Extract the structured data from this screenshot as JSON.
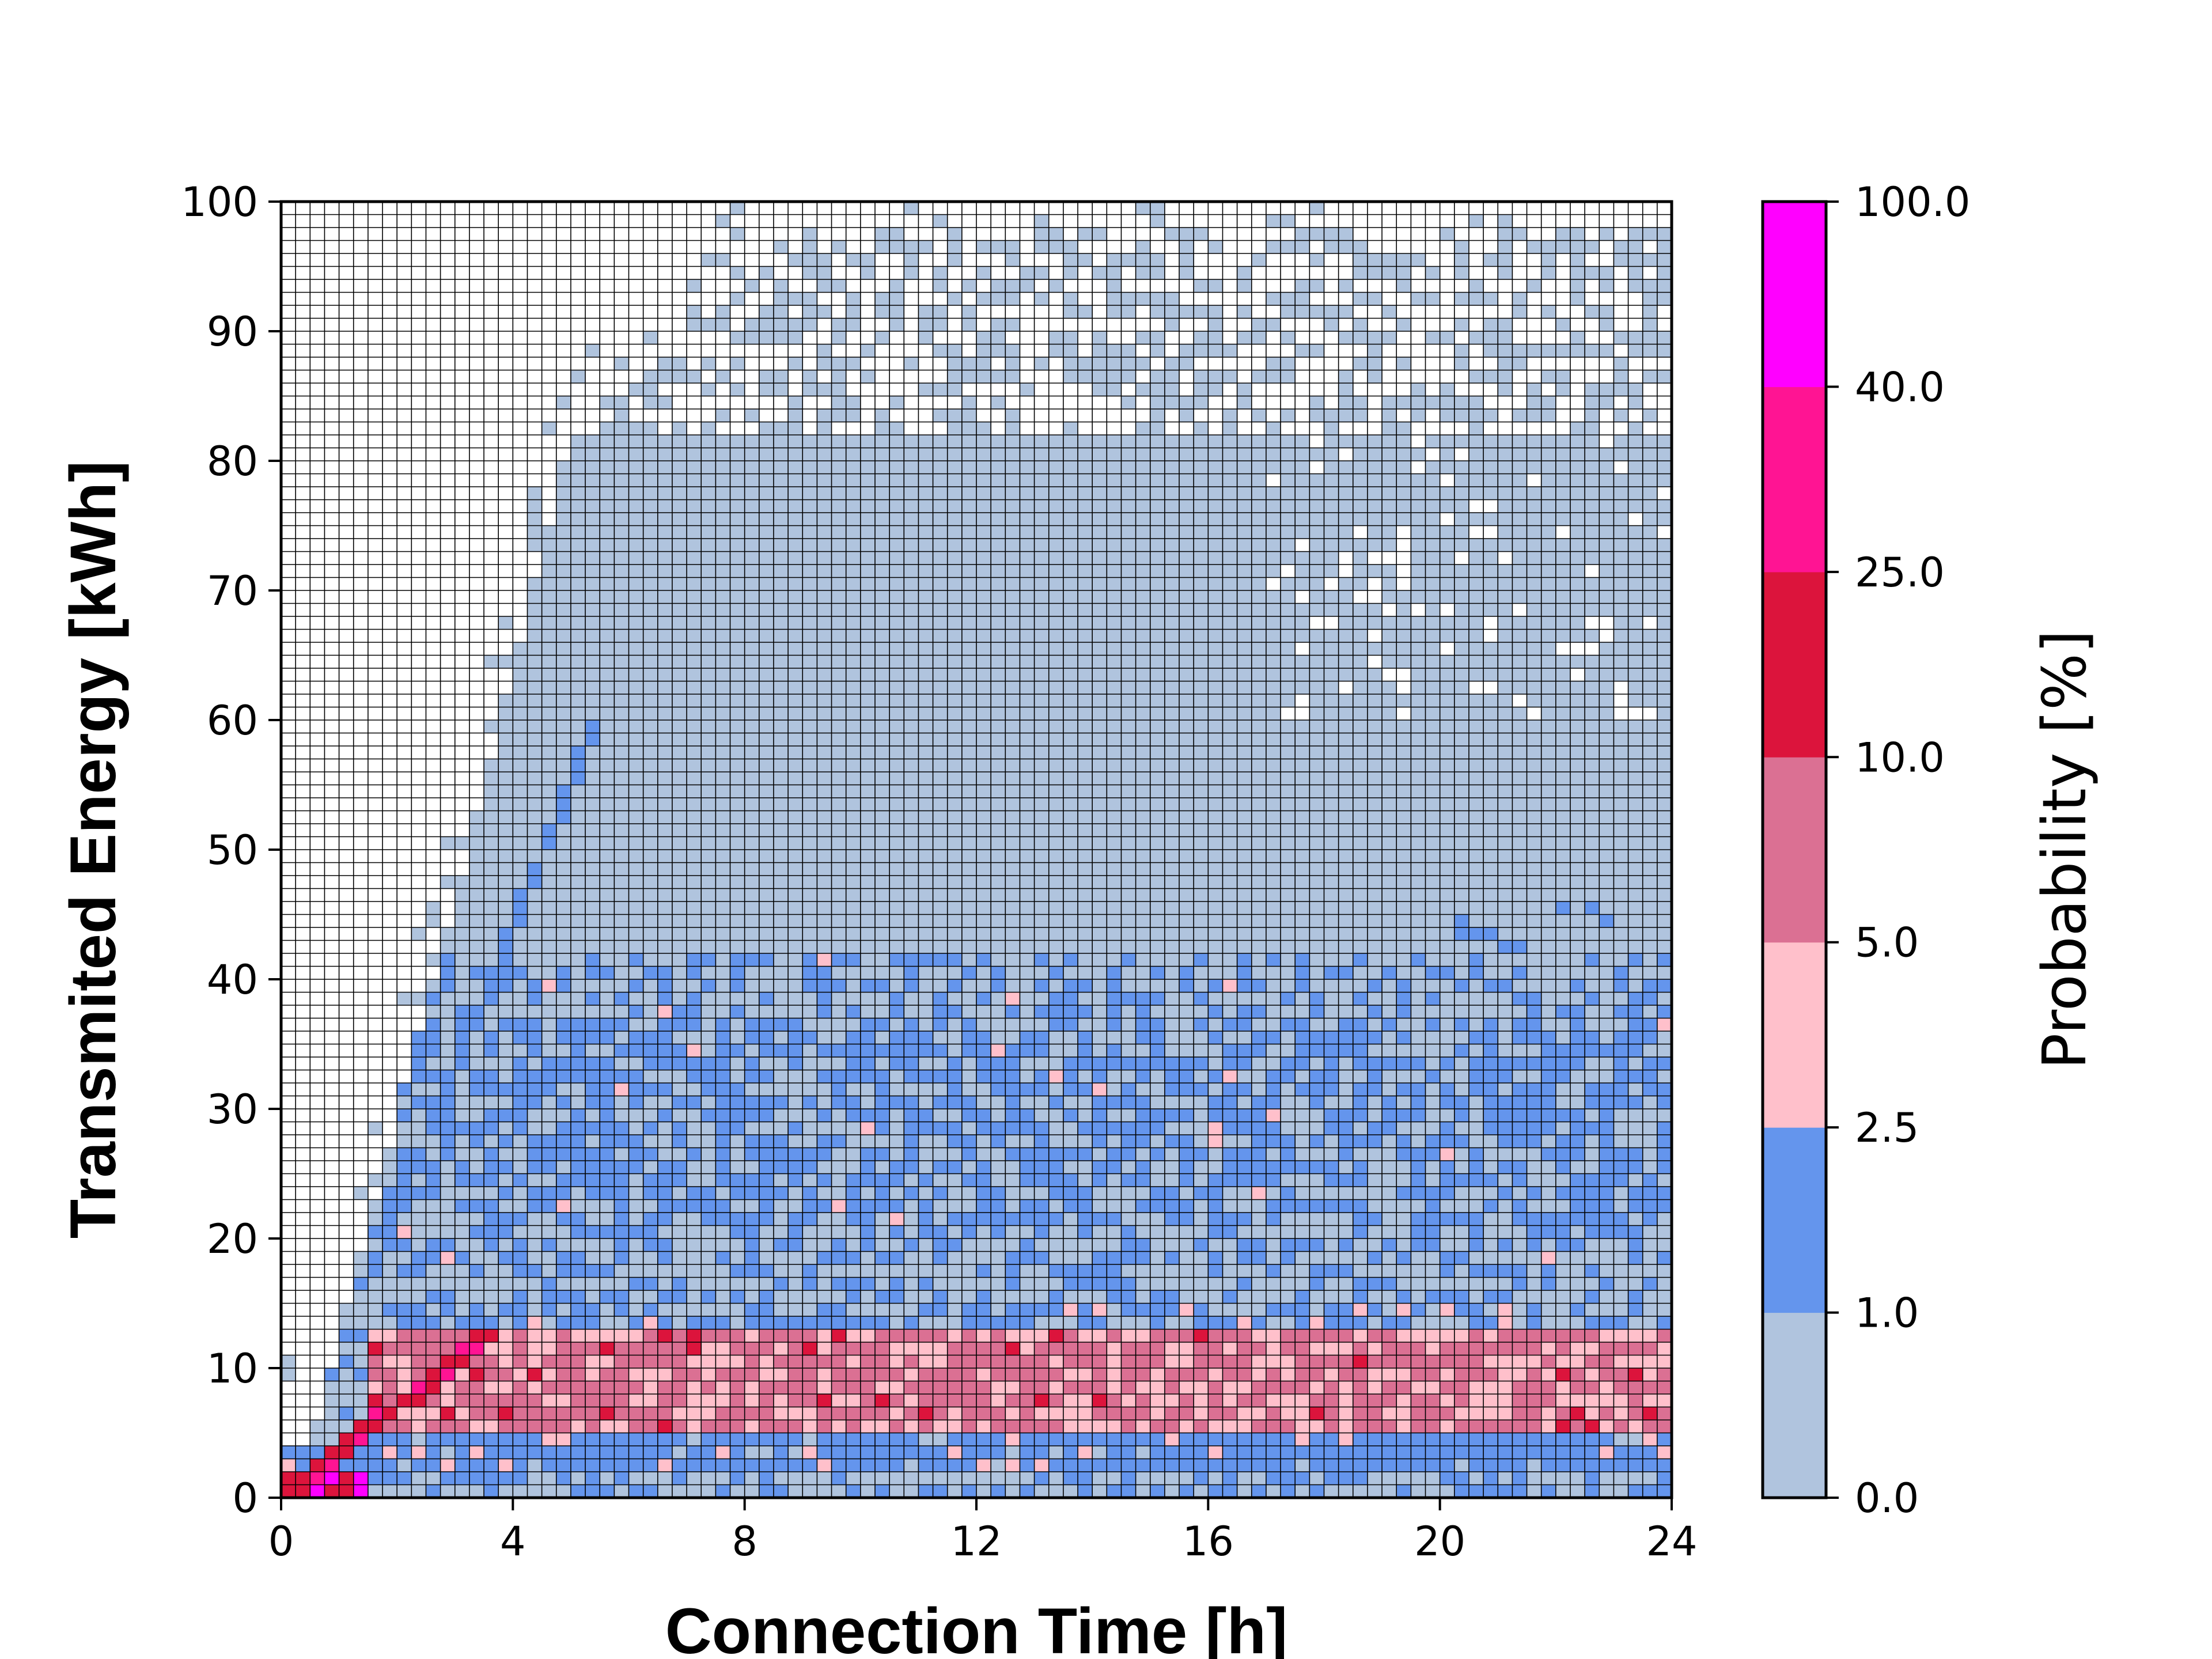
{
  "chart_data": {
    "type": "heatmap",
    "title": "",
    "xlabel": "Connection Time [h]",
    "ylabel": "Transmited Energy [kWh]",
    "xlim": [
      0,
      24
    ],
    "ylim": [
      0,
      100
    ],
    "x_ticks": [
      "0",
      "4",
      "8",
      "12",
      "16",
      "20",
      "24"
    ],
    "y_ticks": [
      "0",
      "10",
      "20",
      "30",
      "40",
      "50",
      "60",
      "70",
      "80",
      "90",
      "100"
    ],
    "bins": {
      "x_count": 96,
      "y_count": 100,
      "x_step_h": 0.25,
      "y_step_kwh": 1
    },
    "grid": true,
    "colorbar": {
      "label": "Probability [%]",
      "boundaries": [
        0.0,
        1.0,
        2.5,
        5.0,
        10.0,
        25.0,
        40.0,
        100.0
      ],
      "tick_labels": [
        "0.0",
        "1.0",
        "2.5",
        "5.0",
        "10.0",
        "25.0",
        "40.0",
        "100.0"
      ],
      "colors": [
        "#b0c4de",
        "#6495ed",
        "#ffc0cb",
        "#db7093",
        "#dc143c",
        "#ff1493",
        "#ff00ff"
      ],
      "placement": "right"
    },
    "regions": [
      {
        "description_range": "E between 5 and 13 kWh, all times beyond ~1.5 h",
        "class_range": [
          2.5,
          10.0
        ]
      },
      {
        "description_range": "E between 2 and 5 kWh and 14 to 42 kWh",
        "class_range": [
          1.0,
          2.5
        ]
      },
      {
        "description_range": "diagonal charging curve E ≈ 3.5 kWh per h up to ~4 h",
        "class_range": [
          5.0,
          25.0
        ]
      },
      {
        "description_range": "remaining populated area up to 100 kWh",
        "class_range": [
          0.0,
          1.0
        ]
      }
    ]
  }
}
